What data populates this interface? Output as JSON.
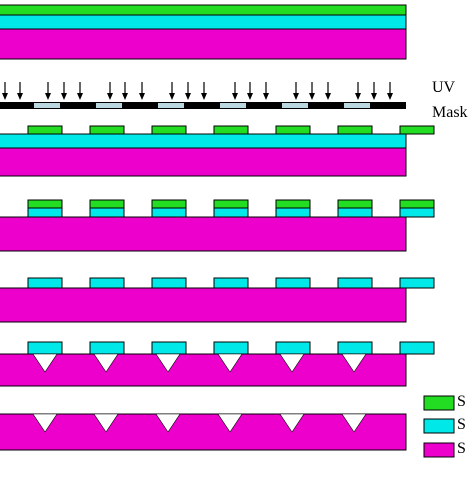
{
  "labels": {
    "uv": "UV",
    "mask": "Mask"
  },
  "legend": [
    {
      "color": "#22dd22",
      "text": "S"
    },
    {
      "color": "#00e8e8",
      "text": "S"
    },
    {
      "color": "#ee00cc",
      "text": "S"
    }
  ],
  "colors": {
    "photoresist": "#22dd22",
    "oxide": "#00e8e8",
    "substrate": "#ee00cc",
    "mask_opaque": "#000000",
    "mask_window": "#bbd8e0",
    "outline": "#000000",
    "pit_fill": "#ffffff"
  },
  "process_steps": [
    "layer-stack",
    "uv-exposure",
    "resist-developed",
    "oxide-etched",
    "resist-stripped",
    "anisotropic-etch",
    "oxide-removed"
  ]
}
